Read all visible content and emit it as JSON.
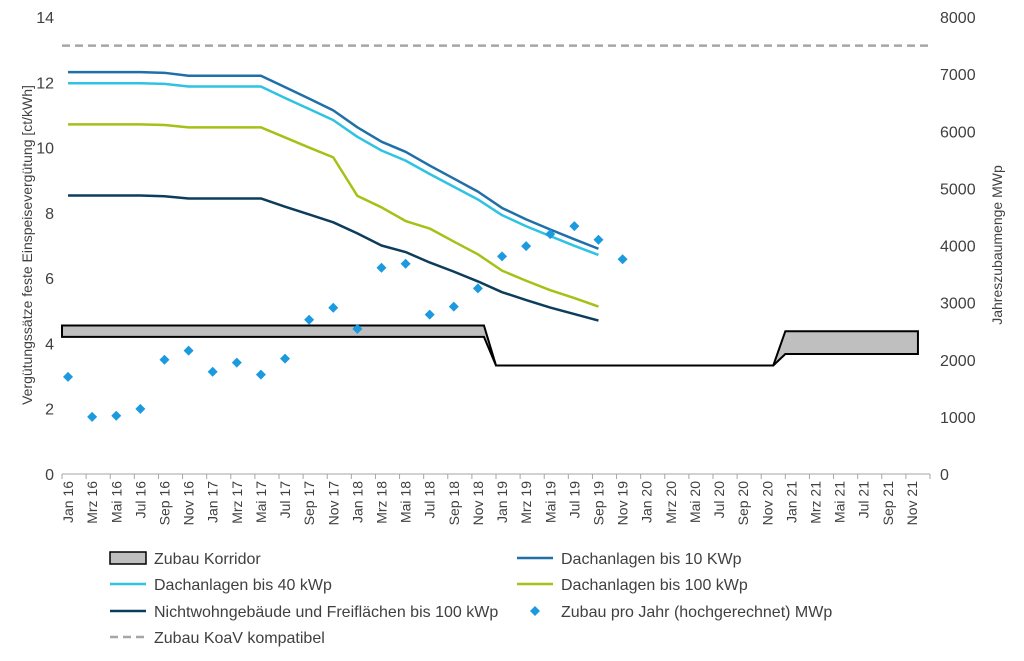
{
  "chart_data": {
    "type": "line",
    "title": "",
    "ylabel_left": "Vergütungssätze feste Einspeisevergütung [ct/kWh]",
    "ylabel_right": "Jahreszubaumenge MWp",
    "x_tick_labels": [
      "Jan 16",
      "Mrz 16",
      "Mai 16",
      "Jul 16",
      "Sep 16",
      "Nov 16",
      "Jan 17",
      "Mrz 17",
      "Mai 17",
      "Jul 17",
      "Sep 17",
      "Nov 17",
      "Jan 18",
      "Mrz 18",
      "Mai 18",
      "Jul 18",
      "Sep 18",
      "Nov 18",
      "Jan 19",
      "Mrz 19",
      "Mai 19",
      "Jul 19",
      "Sep 19",
      "Nov 19",
      "Jan 20",
      "Mrz 20",
      "Mai 20",
      "Jul 20",
      "Sep 20",
      "Nov 20",
      "Jan 21",
      "Mrz 21",
      "Mai 21",
      "Jul 21",
      "Sep 21",
      "Nov 21"
    ],
    "ylim_left": [
      0,
      14
    ],
    "yticks_left": [
      0,
      2,
      4,
      6,
      8,
      10,
      12,
      14
    ],
    "ylim_right": [
      0,
      8000
    ],
    "yticks_right": [
      0,
      1000,
      2000,
      3000,
      4000,
      5000,
      6000,
      7000,
      8000
    ],
    "grid": false,
    "legend_position": "bottom",
    "colors": {
      "text": "#404040",
      "axis": "#a6a6a6",
      "corridor_fill": "#bfbfbf",
      "corridor_line": "#000000",
      "bis10": "#1f6fa8",
      "bis40": "#2fc3e3",
      "bis100": "#a4c116",
      "nichtwohn": "#0d3d5c",
      "zubau": "#1c9ae0",
      "koav": "#a6a6a6"
    },
    "series": [
      {
        "name": "Dachanlagen bis 10 KWp",
        "key": "bis10",
        "axis": "left",
        "points": [
          [
            0,
            12.31
          ],
          [
            6,
            12.31
          ],
          [
            8,
            12.29
          ],
          [
            10,
            12.2
          ],
          [
            16,
            12.2
          ],
          [
            18,
            11.85
          ],
          [
            20,
            11.5
          ],
          [
            22,
            11.14
          ],
          [
            24,
            10.62
          ],
          [
            26,
            10.18
          ],
          [
            28,
            9.87
          ],
          [
            30,
            9.45
          ],
          [
            32,
            9.05
          ],
          [
            34,
            8.65
          ],
          [
            36,
            8.15
          ],
          [
            38,
            7.8
          ],
          [
            40,
            7.49
          ],
          [
            42,
            7.19
          ],
          [
            44,
            6.9
          ]
        ]
      },
      {
        "name": "Dachanlagen bis 40 kWp",
        "key": "bis40",
        "axis": "left",
        "points": [
          [
            0,
            11.97
          ],
          [
            6,
            11.97
          ],
          [
            8,
            11.95
          ],
          [
            10,
            11.87
          ],
          [
            16,
            11.87
          ],
          [
            18,
            11.52
          ],
          [
            20,
            11.18
          ],
          [
            22,
            10.84
          ],
          [
            24,
            10.33
          ],
          [
            26,
            9.91
          ],
          [
            28,
            9.6
          ],
          [
            30,
            9.19
          ],
          [
            32,
            8.8
          ],
          [
            34,
            8.41
          ],
          [
            36,
            7.93
          ],
          [
            38,
            7.59
          ],
          [
            40,
            7.29
          ],
          [
            42,
            6.99
          ],
          [
            44,
            6.71
          ]
        ]
      },
      {
        "name": "Dachanlagen bis 100 kWp",
        "key": "bis100",
        "axis": "left",
        "points": [
          [
            0,
            10.71
          ],
          [
            6,
            10.71
          ],
          [
            8,
            10.69
          ],
          [
            10,
            10.62
          ],
          [
            16,
            10.62
          ],
          [
            18,
            10.31
          ],
          [
            20,
            10.0
          ],
          [
            22,
            9.7
          ],
          [
            24,
            8.52
          ],
          [
            26,
            8.17
          ],
          [
            28,
            7.75
          ],
          [
            30,
            7.52
          ],
          [
            32,
            7.12
          ],
          [
            34,
            6.73
          ],
          [
            36,
            6.23
          ],
          [
            38,
            5.92
          ],
          [
            40,
            5.63
          ],
          [
            42,
            5.39
          ],
          [
            44,
            5.13
          ]
        ]
      },
      {
        "name": "Nichtwohngebäude und Freiflächen bis 100 kWp",
        "key": "nichtwohn",
        "axis": "left",
        "points": [
          [
            0,
            8.53
          ],
          [
            6,
            8.53
          ],
          [
            8,
            8.51
          ],
          [
            10,
            8.44
          ],
          [
            16,
            8.44
          ],
          [
            18,
            8.19
          ],
          [
            20,
            7.95
          ],
          [
            22,
            7.71
          ],
          [
            24,
            7.37
          ],
          [
            26,
            7.0
          ],
          [
            28,
            6.8
          ],
          [
            30,
            6.48
          ],
          [
            32,
            6.2
          ],
          [
            34,
            5.9
          ],
          [
            36,
            5.57
          ],
          [
            38,
            5.33
          ],
          [
            40,
            5.1
          ],
          [
            42,
            4.9
          ],
          [
            44,
            4.7
          ]
        ]
      },
      {
        "name": "Zubau pro Jahr (hochgerechnet) MWp",
        "key": "zubau",
        "axis": "right",
        "type": "scatter",
        "points": [
          [
            0,
            1700
          ],
          [
            2,
            1000
          ],
          [
            4,
            1020
          ],
          [
            6,
            1140
          ],
          [
            8,
            2000
          ],
          [
            10,
            2160
          ],
          [
            12,
            1790
          ],
          [
            14,
            1950
          ],
          [
            16,
            1740
          ],
          [
            18,
            2020
          ],
          [
            20,
            2700
          ],
          [
            22,
            2910
          ],
          [
            24,
            2540
          ],
          [
            26,
            3610
          ],
          [
            28,
            3680
          ],
          [
            30,
            2790
          ],
          [
            32,
            2930
          ],
          [
            34,
            3250
          ],
          [
            36,
            3810
          ],
          [
            38,
            3990
          ],
          [
            40,
            4200
          ],
          [
            42,
            4340
          ],
          [
            44,
            4100
          ],
          [
            46,
            3760
          ]
        ]
      },
      {
        "name": "Zubau KoaV kompatibel",
        "key": "koav",
        "axis": "right",
        "type": "dashed",
        "points": [
          [
            0,
            7500
          ],
          [
            47,
            7500
          ]
        ]
      }
    ],
    "corridor": {
      "name": "Zubau Korridor",
      "upper": [
        [
          0,
          2600
        ],
        [
          35,
          2600
        ],
        [
          36,
          1900
        ],
        [
          59,
          1900
        ],
        [
          60,
          2500
        ],
        [
          71,
          2500
        ]
      ],
      "lower": [
        [
          0,
          2400
        ],
        [
          35,
          2400
        ],
        [
          36,
          1900
        ],
        [
          59,
          1900
        ],
        [
          60,
          2100
        ],
        [
          71,
          2100
        ]
      ]
    },
    "legend": [
      {
        "label": "Zubau Korridor",
        "key": "corridor",
        "symbol": "box"
      },
      {
        "label": "Dachanlagen bis 10 KWp",
        "key": "bis10",
        "symbol": "line"
      },
      {
        "label": "Dachanlagen bis 40 kWp",
        "key": "bis40",
        "symbol": "line"
      },
      {
        "label": "Dachanlagen bis 100 kWp",
        "key": "bis100",
        "symbol": "line"
      },
      {
        "label": "Nichtwohngebäude und Freiflächen bis 100 kWp",
        "key": "nichtwohn",
        "symbol": "line"
      },
      {
        "label": "Zubau pro Jahr (hochgerechnet) MWp",
        "key": "zubau",
        "symbol": "diamond"
      },
      {
        "label": "Zubau KoaV kompatibel",
        "key": "koav",
        "symbol": "dashed"
      }
    ]
  }
}
